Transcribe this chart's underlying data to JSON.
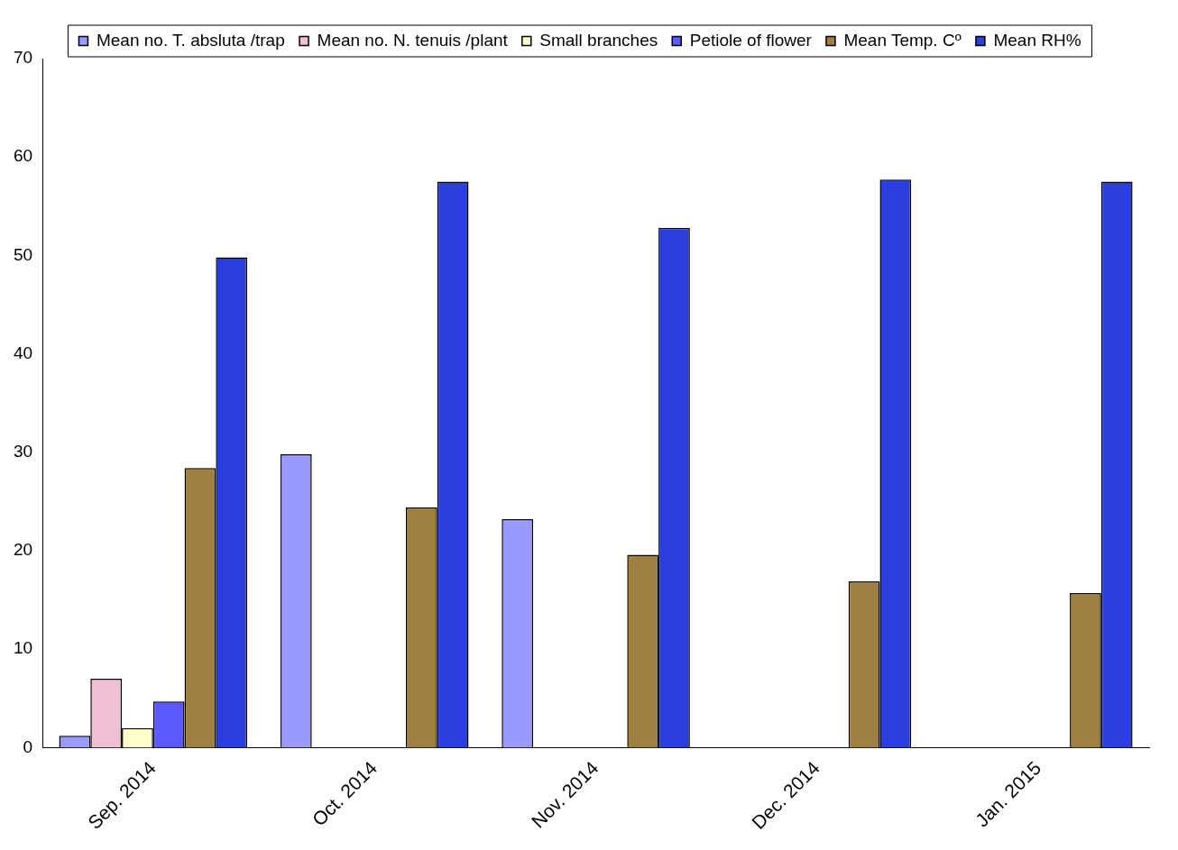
{
  "chart_data": {
    "type": "bar",
    "categories": [
      "Sep. 2014",
      "Oct. 2014",
      "Nov. 2014",
      "Dec. 2014",
      "Jan. 2015"
    ],
    "series": [
      {
        "name": "Mean no. T. absluta /trap",
        "color": "#9999ff",
        "values": [
          1.2,
          29.8,
          23.2,
          0,
          0
        ]
      },
      {
        "name": "Mean no. N. tenuis /plant",
        "color": "#f0c0d4",
        "values": [
          7.0,
          0,
          0,
          0,
          0
        ]
      },
      {
        "name": "Small branches",
        "color": "#ffffcc",
        "values": [
          2.0,
          0,
          0,
          0,
          0
        ]
      },
      {
        "name": "Petiole of flower",
        "color": "#5a5aff",
        "values": [
          4.7,
          0,
          0,
          0,
          0
        ]
      },
      {
        "name": "Mean Temp. Cº",
        "color": "#a08040",
        "values": [
          28.4,
          24.4,
          19.6,
          16.9,
          15.7
        ]
      },
      {
        "name": "Mean RH%",
        "color": "#2b3fe0",
        "values": [
          49.8,
          57.5,
          52.8,
          57.7,
          57.5
        ]
      }
    ],
    "ylim": [
      0,
      70
    ],
    "yticks": [
      0,
      10,
      20,
      30,
      40,
      50,
      60,
      70
    ],
    "grid": false,
    "legend": "top"
  }
}
